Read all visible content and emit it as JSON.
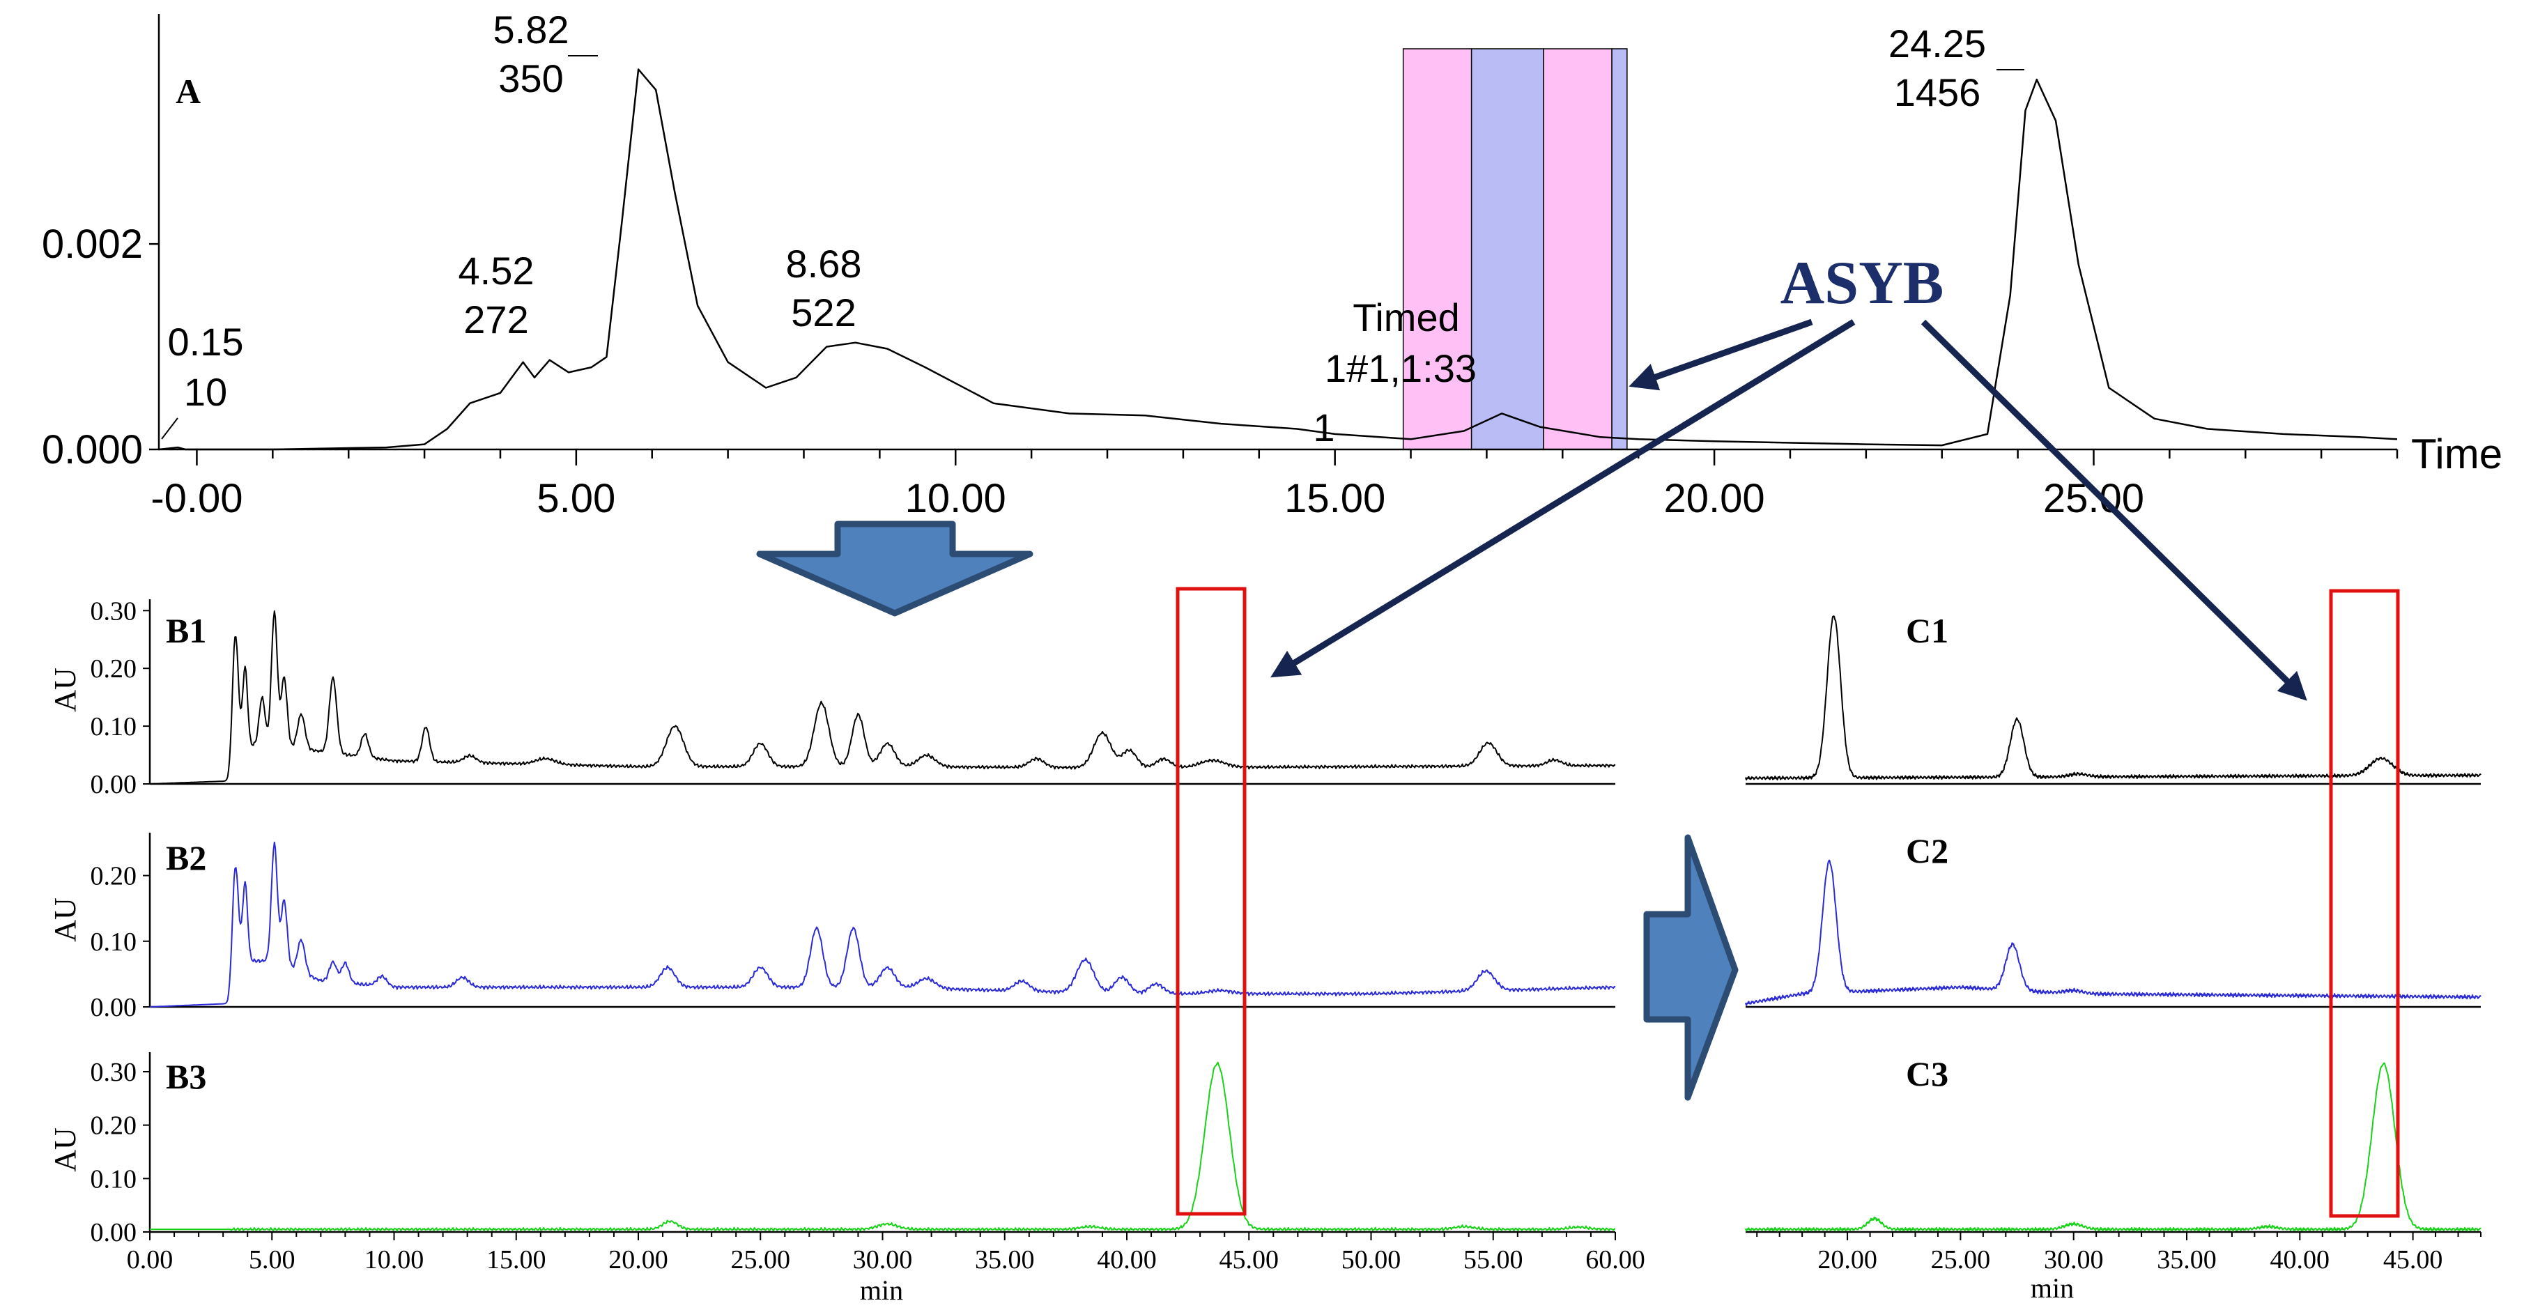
{
  "colors": {
    "background": "#ffffff",
    "trace_black": "#000000",
    "trace_blue": "#2b2bd6",
    "trace_green": "#19d219",
    "fraction_pink": "#ffc0f6",
    "fraction_blue": "#b9bcf5",
    "highlight_box": "#e01010",
    "asyb_text": "#1d2f6b",
    "annotation_arrow": "#16254f",
    "big_arrow_fill": "#4f81bd",
    "big_arrow_edge": "#2c4c74"
  },
  "chart_data": [
    {
      "id": "A",
      "panel_label": "A",
      "type": "line",
      "xlabel": "Time",
      "xlim": [
        -0.5,
        29.0
      ],
      "ylim": [
        0.0,
        0.0039
      ],
      "y_ticks": [
        0.0,
        0.002
      ],
      "y_tick_labels": [
        "0.000",
        "0.002"
      ],
      "x_ticks": [
        0,
        5,
        10,
        15,
        20,
        25
      ],
      "x_tick_labels": [
        "-0.00",
        "5.00",
        "10.00",
        "15.00",
        "20.00",
        "25.00"
      ],
      "grid": false,
      "trace_color": "#000000",
      "points": [
        [
          -0.5,
          0.0
        ],
        [
          -0.25,
          2e-05
        ],
        [
          -0.15,
          0.0
        ],
        [
          0.0,
          0.0
        ],
        [
          1.0,
          0.0
        ],
        [
          2.5,
          2e-05
        ],
        [
          3.0,
          5e-05
        ],
        [
          3.3,
          0.0002
        ],
        [
          3.6,
          0.00045
        ],
        [
          4.0,
          0.00055
        ],
        [
          4.3,
          0.00085
        ],
        [
          4.45,
          0.0007
        ],
        [
          4.65,
          0.00087
        ],
        [
          4.9,
          0.00075
        ],
        [
          5.2,
          0.0008
        ],
        [
          5.4,
          0.0009
        ],
        [
          5.6,
          0.0022
        ],
        [
          5.82,
          0.0037
        ],
        [
          6.05,
          0.0035
        ],
        [
          6.3,
          0.0025
        ],
        [
          6.6,
          0.0014
        ],
        [
          7.0,
          0.00085
        ],
        [
          7.5,
          0.0006
        ],
        [
          7.9,
          0.0007
        ],
        [
          8.3,
          0.001
        ],
        [
          8.68,
          0.00104
        ],
        [
          9.1,
          0.00098
        ],
        [
          9.6,
          0.0008
        ],
        [
          10.5,
          0.00045
        ],
        [
          11.5,
          0.00035
        ],
        [
          12.5,
          0.00033
        ],
        [
          13.5,
          0.00025
        ],
        [
          14.5,
          0.0002
        ],
        [
          15.0,
          0.00015
        ],
        [
          16.0,
          0.0001
        ],
        [
          16.7,
          0.00018
        ],
        [
          17.2,
          0.00035
        ],
        [
          17.7,
          0.00022
        ],
        [
          18.5,
          0.00012
        ],
        [
          19.0,
          0.0001
        ],
        [
          20.0,
          8e-05
        ],
        [
          22.0,
          5e-05
        ],
        [
          23.0,
          4e-05
        ],
        [
          23.6,
          0.00015
        ],
        [
          23.9,
          0.0015
        ],
        [
          24.1,
          0.0033
        ],
        [
          24.25,
          0.0036
        ],
        [
          24.5,
          0.0032
        ],
        [
          24.8,
          0.0018
        ],
        [
          25.2,
          0.0006
        ],
        [
          25.8,
          0.0003
        ],
        [
          26.5,
          0.0002
        ],
        [
          27.5,
          0.00015
        ],
        [
          28.5,
          0.00012
        ],
        [
          29.0,
          0.0001
        ]
      ],
      "peak_labels": [
        {
          "time": "0.15",
          "area": "10"
        },
        {
          "time": "4.52",
          "area": "272"
        },
        {
          "time": "5.82",
          "area": "350"
        },
        {
          "time": "8.68",
          "area": "522"
        },
        {
          "time": "24.25",
          "area": "1456"
        }
      ],
      "timed_event": {
        "line1": "Timed",
        "line2": "1#1,1:33",
        "line3": "1"
      },
      "fraction_bands": [
        {
          "x0": 15.9,
          "x1": 16.8,
          "color": "#ffc0f6"
        },
        {
          "x0": 16.8,
          "x1": 17.75,
          "color": "#b9bcf5"
        },
        {
          "x0": 17.75,
          "x1": 18.65,
          "color": "#ffc0f6"
        },
        {
          "x0": 18.65,
          "x1": 18.85,
          "color": "#b9bcf5"
        }
      ]
    },
    {
      "id": "B1",
      "panel_label": "B1",
      "type": "line",
      "ylabel": "AU",
      "xlim": [
        0,
        60
      ],
      "ylim": [
        0,
        0.31
      ],
      "y_tick_labels": [
        "0.00",
        "0.10",
        "0.20",
        "0.30"
      ],
      "y_ticks": [
        0,
        0.1,
        0.2,
        0.3
      ],
      "trace_color": "#000000",
      "baseline": [
        [
          0,
          0.0
        ],
        [
          3.2,
          0.005
        ],
        [
          3.7,
          0.06
        ],
        [
          4.5,
          0.07
        ],
        [
          10,
          0.04
        ],
        [
          20,
          0.03
        ],
        [
          30,
          0.03
        ],
        [
          40,
          0.028
        ],
        [
          50,
          0.03
        ],
        [
          60,
          0.032
        ]
      ],
      "peaks": [
        [
          3.5,
          0.22,
          0.12
        ],
        [
          3.9,
          0.14,
          0.1
        ],
        [
          4.6,
          0.08,
          0.12
        ],
        [
          5.1,
          0.23,
          0.12
        ],
        [
          5.5,
          0.12,
          0.12
        ],
        [
          6.2,
          0.06,
          0.15
        ],
        [
          7.5,
          0.13,
          0.15
        ],
        [
          8.8,
          0.04,
          0.15
        ],
        [
          11.3,
          0.06,
          0.15
        ],
        [
          13.1,
          0.012,
          0.25
        ],
        [
          16.2,
          0.01,
          0.4
        ],
        [
          21.5,
          0.07,
          0.35
        ],
        [
          25.0,
          0.04,
          0.3
        ],
        [
          27.5,
          0.11,
          0.3
        ],
        [
          29.0,
          0.09,
          0.25
        ],
        [
          30.2,
          0.04,
          0.3
        ],
        [
          31.8,
          0.02,
          0.35
        ],
        [
          36.3,
          0.015,
          0.3
        ],
        [
          39.0,
          0.06,
          0.35
        ],
        [
          40.1,
          0.03,
          0.3
        ],
        [
          41.5,
          0.015,
          0.3
        ],
        [
          43.5,
          0.012,
          0.5
        ],
        [
          54.8,
          0.04,
          0.35
        ],
        [
          57.5,
          0.01,
          0.3
        ]
      ]
    },
    {
      "id": "B2",
      "panel_label": "B2",
      "type": "line",
      "ylabel": "AU",
      "xlim": [
        0,
        60
      ],
      "ylim": [
        0,
        0.26
      ],
      "y_tick_labels": [
        "0.00",
        "0.10",
        "0.20"
      ],
      "y_ticks": [
        0,
        0.1,
        0.2
      ],
      "trace_color": "#2b2bd6",
      "baseline": [
        [
          0,
          0.0
        ],
        [
          3.2,
          0.005
        ],
        [
          3.7,
          0.07
        ],
        [
          5,
          0.07
        ],
        [
          7,
          0.04
        ],
        [
          10,
          0.03
        ],
        [
          20,
          0.03
        ],
        [
          30,
          0.03
        ],
        [
          40,
          0.02
        ],
        [
          50,
          0.02
        ],
        [
          60,
          0.03
        ]
      ],
      "peaks": [
        [
          3.5,
          0.17,
          0.12
        ],
        [
          3.9,
          0.12,
          0.1
        ],
        [
          5.1,
          0.18,
          0.12
        ],
        [
          5.5,
          0.1,
          0.12
        ],
        [
          6.2,
          0.05,
          0.15
        ],
        [
          7.5,
          0.03,
          0.15
        ],
        [
          8.0,
          0.03,
          0.15
        ],
        [
          9.5,
          0.015,
          0.2
        ],
        [
          12.8,
          0.015,
          0.25
        ],
        [
          21.2,
          0.03,
          0.3
        ],
        [
          25.0,
          0.03,
          0.3
        ],
        [
          27.3,
          0.09,
          0.25
        ],
        [
          28.8,
          0.09,
          0.25
        ],
        [
          30.2,
          0.03,
          0.3
        ],
        [
          31.8,
          0.015,
          0.35
        ],
        [
          35.7,
          0.015,
          0.3
        ],
        [
          38.3,
          0.05,
          0.35
        ],
        [
          39.8,
          0.025,
          0.3
        ],
        [
          41.2,
          0.015,
          0.3
        ],
        [
          43.8,
          0.005,
          0.5
        ],
        [
          54.7,
          0.03,
          0.35
        ]
      ]
    },
    {
      "id": "B3",
      "panel_label": "B3",
      "type": "line",
      "ylabel": "AU",
      "xlabel": "min",
      "xlim": [
        0,
        60
      ],
      "ylim": [
        0,
        0.33
      ],
      "y_tick_labels": [
        "0.00",
        "0.10",
        "0.20",
        "0.30"
      ],
      "y_ticks": [
        0,
        0.1,
        0.2,
        0.3
      ],
      "x_ticks": [
        0,
        5,
        10,
        15,
        20,
        25,
        30,
        35,
        40,
        45,
        50,
        55,
        60
      ],
      "x_tick_labels": [
        "0.00",
        "5.00",
        "10.00",
        "15.00",
        "20.00",
        "25.00",
        "30.00",
        "35.00",
        "40.00",
        "45.00",
        "50.00",
        "55.00",
        "60.00"
      ],
      "trace_color": "#19d219",
      "baseline": [
        [
          0,
          0.005
        ],
        [
          60,
          0.005
        ]
      ],
      "peaks": [
        [
          21.3,
          0.015,
          0.3
        ],
        [
          30.2,
          0.01,
          0.4
        ],
        [
          38.5,
          0.005,
          0.4
        ],
        [
          43.7,
          0.31,
          0.5
        ],
        [
          53.8,
          0.005,
          0.4
        ],
        [
          58.5,
          0.004,
          0.4
        ]
      ]
    },
    {
      "id": "C1",
      "panel_label": "C1",
      "type": "line",
      "xlim": [
        15.5,
        48.0
      ],
      "ylim": [
        0,
        0.31
      ],
      "trace_color": "#000000",
      "baseline": [
        [
          15.5,
          0.01
        ],
        [
          48,
          0.015
        ]
      ],
      "peaks": [
        [
          19.4,
          0.28,
          0.3
        ],
        [
          27.5,
          0.1,
          0.3
        ],
        [
          30.2,
          0.005,
          0.4
        ],
        [
          43.6,
          0.03,
          0.5
        ]
      ]
    },
    {
      "id": "C2",
      "panel_label": "C2",
      "type": "line",
      "xlim": [
        15.5,
        48.0
      ],
      "ylim": [
        0,
        0.26
      ],
      "trace_color": "#2b2bd6",
      "baseline": [
        [
          15.5,
          0.005
        ],
        [
          18,
          0.02
        ],
        [
          25,
          0.03
        ],
        [
          30,
          0.02
        ],
        [
          48,
          0.015
        ]
      ],
      "peaks": [
        [
          19.2,
          0.2,
          0.3
        ],
        [
          27.3,
          0.07,
          0.3
        ],
        [
          30.0,
          0.005,
          0.4
        ]
      ]
    },
    {
      "id": "C3",
      "panel_label": "C3",
      "type": "line",
      "xlabel": "min",
      "xlim": [
        15.5,
        48.0
      ],
      "ylim": [
        0,
        0.33
      ],
      "x_ticks": [
        20,
        25,
        30,
        35,
        40,
        45
      ],
      "x_tick_labels": [
        "20.00",
        "25.00",
        "30.00",
        "35.00",
        "40.00",
        "45.00"
      ],
      "trace_color": "#19d219",
      "baseline": [
        [
          15.5,
          0.005
        ],
        [
          48,
          0.005
        ]
      ],
      "peaks": [
        [
          21.2,
          0.02,
          0.3
        ],
        [
          30.0,
          0.01,
          0.4
        ],
        [
          38.6,
          0.005,
          0.4
        ],
        [
          43.7,
          0.31,
          0.5
        ]
      ]
    }
  ],
  "annotation": {
    "label": "ASYB"
  }
}
